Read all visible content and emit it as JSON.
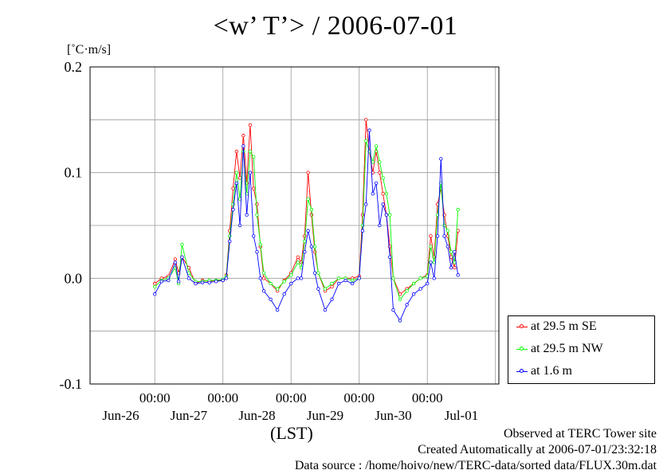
{
  "title": "<w’ T’> / 2006-07-01",
  "unit_label": "[˚C·m/s]",
  "footer": {
    "observed": "Observed at TERC Tower site",
    "created": "Created Automatically at 2006-07-01/23:32:18",
    "source": "Data source : /home/hoivo/new/TERC-data/sorted  data/FLUX.30m.dat"
  },
  "chart_data": {
    "type": "line",
    "title": "<w’ T’> / 2006-07-01",
    "ylabel": "[˚C·m/s]",
    "xlabel": "(LST)",
    "ylim": [
      -0.1,
      0.2
    ],
    "xlim_days": [
      -0.95,
      5.05
    ],
    "y_ticks": [
      -0.1,
      0.0,
      0.1,
      0.2
    ],
    "y_tick_labels": [
      "-0.1",
      "0.0",
      "0.1",
      "0.2"
    ],
    "x_tick_time_labels": [
      "00:00",
      "00:00",
      "00:00",
      "00:00",
      "00:00"
    ],
    "x_day_labels": [
      "Jun-26",
      "Jun-27",
      "Jun-28",
      "Jun-29",
      "Jun-30",
      "Jul-01"
    ],
    "grid": true,
    "legend_position": "bottom-right outside",
    "series": [
      {
        "name": "at 29.5 m SE",
        "color": "#ff0000",
        "values": [
          [
            0.0,
            -0.005
          ],
          [
            0.1,
            0.0
          ],
          [
            0.2,
            0.002
          ],
          [
            0.3,
            0.018
          ],
          [
            0.35,
            0.005
          ],
          [
            0.4,
            0.02
          ],
          [
            0.5,
            0.01
          ],
          [
            0.6,
            -0.005
          ],
          [
            0.7,
            -0.002
          ],
          [
            0.8,
            -0.003
          ],
          [
            0.9,
            -0.002
          ],
          [
            1.0,
            -0.002
          ],
          [
            1.05,
            0.003
          ],
          [
            1.1,
            0.045
          ],
          [
            1.15,
            0.085
          ],
          [
            1.2,
            0.12
          ],
          [
            1.25,
            0.095
          ],
          [
            1.3,
            0.135
          ],
          [
            1.35,
            0.09
          ],
          [
            1.4,
            0.145
          ],
          [
            1.45,
            0.085
          ],
          [
            1.5,
            0.07
          ],
          [
            1.55,
            0.03
          ],
          [
            1.6,
            0.0
          ],
          [
            1.7,
            -0.005
          ],
          [
            1.8,
            -0.012
          ],
          [
            1.9,
            -0.002
          ],
          [
            2.0,
            0.005
          ],
          [
            2.1,
            0.02
          ],
          [
            2.15,
            0.015
          ],
          [
            2.2,
            0.04
          ],
          [
            2.25,
            0.1
          ],
          [
            2.3,
            0.06
          ],
          [
            2.35,
            0.025
          ],
          [
            2.4,
            0.005
          ],
          [
            2.5,
            -0.012
          ],
          [
            2.6,
            -0.008
          ],
          [
            2.7,
            0.0
          ],
          [
            2.8,
            0.0
          ],
          [
            2.9,
            0.0
          ],
          [
            3.0,
            0.002
          ],
          [
            3.05,
            0.06
          ],
          [
            3.1,
            0.15
          ],
          [
            3.15,
            0.12
          ],
          [
            3.2,
            0.1
          ],
          [
            3.25,
            0.12
          ],
          [
            3.3,
            0.1
          ],
          [
            3.35,
            0.08
          ],
          [
            3.4,
            0.06
          ],
          [
            3.45,
            0.03
          ],
          [
            3.5,
            0.0
          ],
          [
            3.6,
            -0.015
          ],
          [
            3.7,
            -0.01
          ],
          [
            3.8,
            -0.005
          ],
          [
            3.9,
            0.0
          ],
          [
            4.0,
            0.003
          ],
          [
            4.05,
            0.04
          ],
          [
            4.1,
            0.02
          ],
          [
            4.15,
            0.07
          ],
          [
            4.2,
            0.085
          ],
          [
            4.25,
            0.06
          ],
          [
            4.3,
            0.04
          ],
          [
            4.35,
            0.02
          ],
          [
            4.4,
            0.01
          ],
          [
            4.45,
            0.045
          ]
        ]
      },
      {
        "name": "at 29.5 m NW",
        "color": "#00ff00",
        "values": [
          [
            0.0,
            -0.008
          ],
          [
            0.1,
            -0.002
          ],
          [
            0.2,
            0.0
          ],
          [
            0.3,
            0.01
          ],
          [
            0.35,
            -0.005
          ],
          [
            0.4,
            0.032
          ],
          [
            0.5,
            0.005
          ],
          [
            0.6,
            -0.003
          ],
          [
            0.7,
            -0.003
          ],
          [
            0.8,
            -0.002
          ],
          [
            0.9,
            -0.002
          ],
          [
            1.0,
            -0.001
          ],
          [
            1.05,
            0.002
          ],
          [
            1.1,
            0.04
          ],
          [
            1.15,
            0.07
          ],
          [
            1.2,
            0.1
          ],
          [
            1.25,
            0.075
          ],
          [
            1.3,
            0.12
          ],
          [
            1.35,
            0.08
          ],
          [
            1.4,
            0.12
          ],
          [
            1.45,
            0.115
          ],
          [
            1.5,
            0.06
          ],
          [
            1.55,
            0.032
          ],
          [
            1.6,
            0.005
          ],
          [
            1.7,
            -0.005
          ],
          [
            1.8,
            -0.01
          ],
          [
            1.9,
            -0.003
          ],
          [
            2.0,
            0.003
          ],
          [
            2.1,
            0.015
          ],
          [
            2.15,
            0.01
          ],
          [
            2.2,
            0.035
          ],
          [
            2.25,
            0.075
          ],
          [
            2.3,
            0.065
          ],
          [
            2.35,
            0.03
          ],
          [
            2.4,
            0.005
          ],
          [
            2.5,
            -0.01
          ],
          [
            2.6,
            -0.005
          ],
          [
            2.7,
            0.0
          ],
          [
            2.8,
            0.0
          ],
          [
            2.9,
            -0.002
          ],
          [
            3.0,
            0.0
          ],
          [
            3.05,
            0.05
          ],
          [
            3.1,
            0.13
          ],
          [
            3.15,
            0.12
          ],
          [
            3.2,
            0.11
          ],
          [
            3.25,
            0.125
          ],
          [
            3.3,
            0.11
          ],
          [
            3.35,
            0.095
          ],
          [
            3.4,
            0.08
          ],
          [
            3.45,
            0.06
          ],
          [
            3.5,
            0.0
          ],
          [
            3.6,
            -0.02
          ],
          [
            3.7,
            -0.012
          ],
          [
            3.8,
            -0.005
          ],
          [
            3.9,
            0.0
          ],
          [
            4.0,
            0.002
          ],
          [
            4.05,
            0.03
          ],
          [
            4.1,
            0.015
          ],
          [
            4.15,
            0.06
          ],
          [
            4.2,
            0.09
          ],
          [
            4.25,
            0.05
          ],
          [
            4.3,
            0.045
          ],
          [
            4.35,
            0.025
          ],
          [
            4.4,
            0.015
          ],
          [
            4.45,
            0.065
          ]
        ]
      },
      {
        "name": "at 1.6 m",
        "color": "#0000ff",
        "values": [
          [
            0.0,
            -0.015
          ],
          [
            0.1,
            -0.003
          ],
          [
            0.2,
            -0.002
          ],
          [
            0.3,
            0.015
          ],
          [
            0.35,
            -0.003
          ],
          [
            0.4,
            0.02
          ],
          [
            0.5,
            0.0
          ],
          [
            0.6,
            -0.005
          ],
          [
            0.7,
            -0.004
          ],
          [
            0.8,
            -0.004
          ],
          [
            0.9,
            -0.003
          ],
          [
            1.0,
            -0.002
          ],
          [
            1.05,
            0.0
          ],
          [
            1.1,
            0.035
          ],
          [
            1.15,
            0.065
          ],
          [
            1.2,
            0.09
          ],
          [
            1.25,
            0.05
          ],
          [
            1.3,
            0.125
          ],
          [
            1.35,
            0.06
          ],
          [
            1.4,
            0.1
          ],
          [
            1.45,
            0.04
          ],
          [
            1.5,
            0.025
          ],
          [
            1.55,
            0.0
          ],
          [
            1.6,
            -0.012
          ],
          [
            1.7,
            -0.02
          ],
          [
            1.8,
            -0.03
          ],
          [
            1.9,
            -0.015
          ],
          [
            2.0,
            -0.005
          ],
          [
            2.1,
            0.0
          ],
          [
            2.15,
            0.0
          ],
          [
            2.2,
            0.025
          ],
          [
            2.25,
            0.045
          ],
          [
            2.3,
            0.03
          ],
          [
            2.35,
            0.005
          ],
          [
            2.4,
            -0.01
          ],
          [
            2.5,
            -0.03
          ],
          [
            2.6,
            -0.02
          ],
          [
            2.7,
            -0.005
          ],
          [
            2.8,
            -0.002
          ],
          [
            2.9,
            -0.005
          ],
          [
            3.0,
            0.0
          ],
          [
            3.05,
            0.045
          ],
          [
            3.1,
            0.07
          ],
          [
            3.15,
            0.14
          ],
          [
            3.2,
            0.08
          ],
          [
            3.25,
            0.09
          ],
          [
            3.3,
            0.05
          ],
          [
            3.35,
            0.07
          ],
          [
            3.4,
            0.06
          ],
          [
            3.45,
            0.02
          ],
          [
            3.5,
            -0.03
          ],
          [
            3.6,
            -0.04
          ],
          [
            3.7,
            -0.025
          ],
          [
            3.8,
            -0.015
          ],
          [
            3.9,
            -0.01
          ],
          [
            4.0,
            -0.005
          ],
          [
            4.05,
            0.015
          ],
          [
            4.1,
            0.0
          ],
          [
            4.15,
            0.04
          ],
          [
            4.2,
            0.113
          ],
          [
            4.25,
            0.04
          ],
          [
            4.3,
            0.03
          ],
          [
            4.35,
            0.01
          ],
          [
            4.4,
            0.025
          ],
          [
            4.45,
            0.003
          ]
        ]
      }
    ]
  }
}
